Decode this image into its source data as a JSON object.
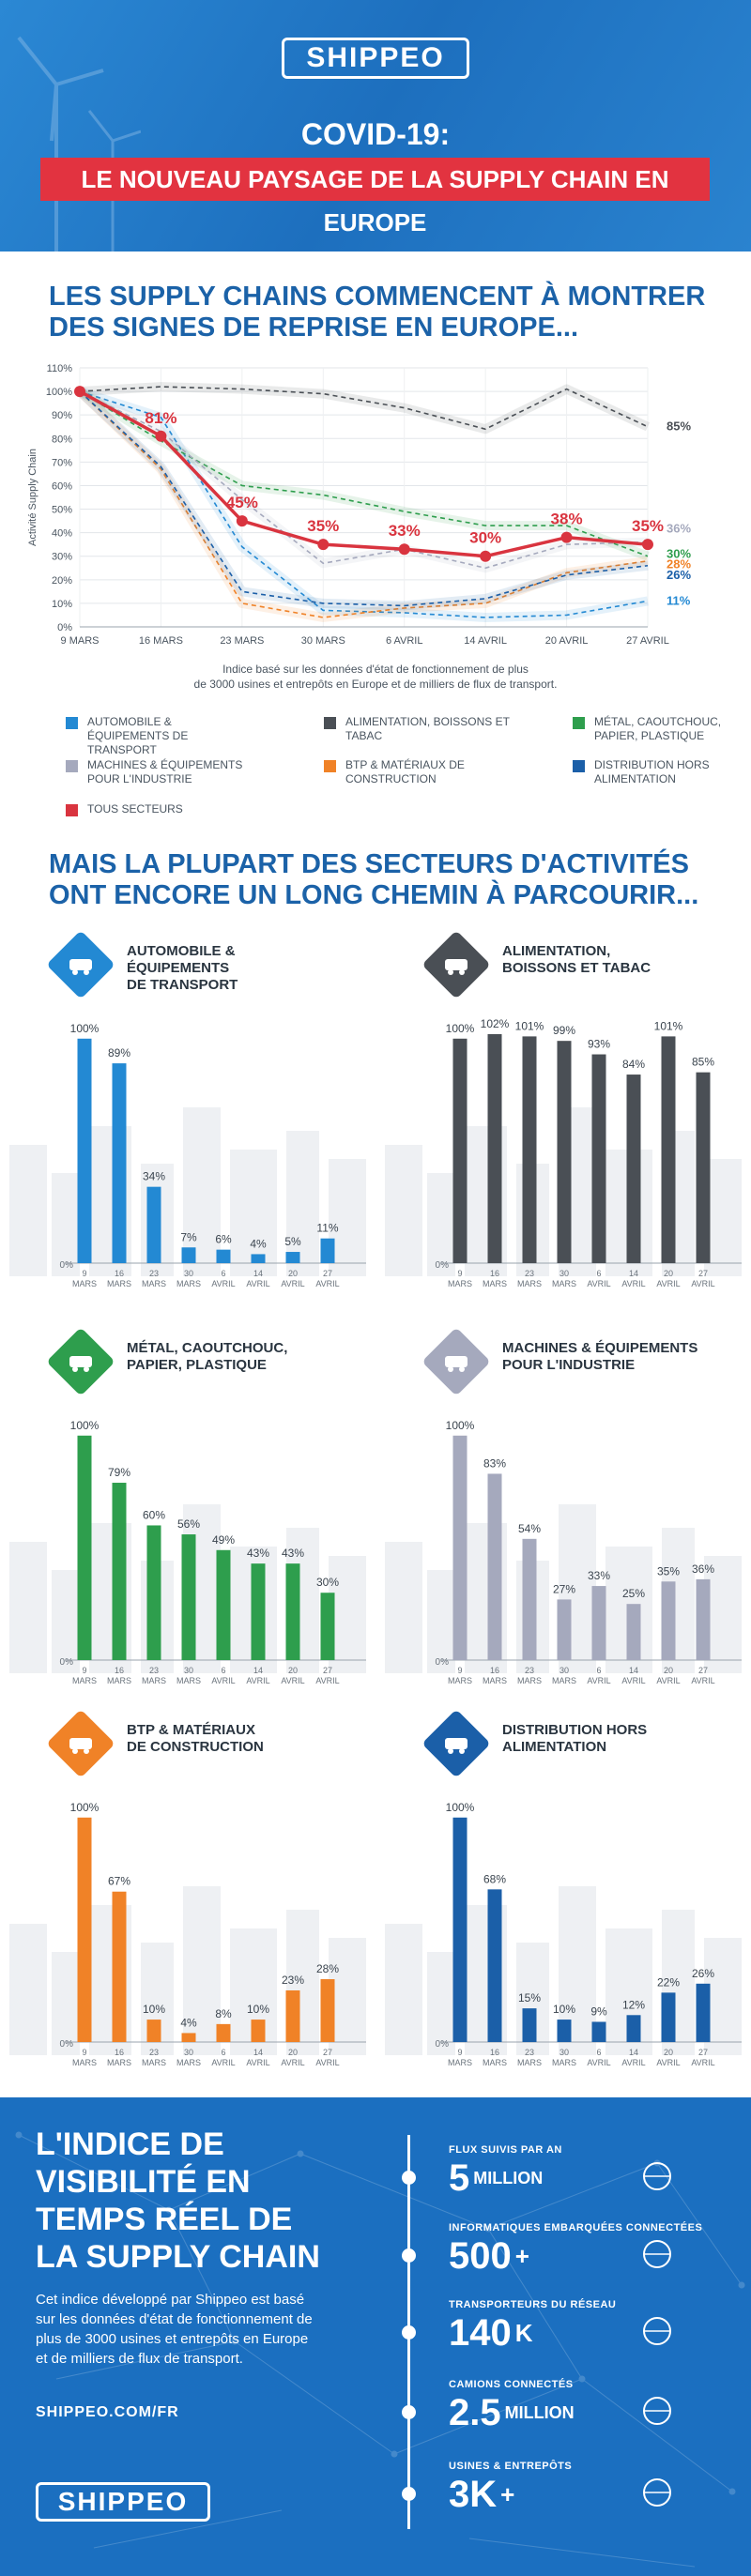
{
  "header": {
    "logo": "SHIPPEO",
    "title": "COVID-19:",
    "subtitle": "LE NOUVEAU PAYSAGE DE LA SUPPLY CHAIN EN EUROPE"
  },
  "section1": {
    "heading_line1": "LES SUPPLY CHAINS COMMENCENT À MONTRER",
    "heading_line2": "DES SIGNES DE REPRISE EN EUROPE...",
    "note_line1": "Indice basé sur les données d'état de fonctionnement de plus",
    "note_line2": "de 3000 usines et entrepôts en Europe et de milliers de flux de transport."
  },
  "legend": [
    {
      "label": "AUTOMOBILE & ÉQUIPEMENTS DE TRANSPORT",
      "color": "#2389d3"
    },
    {
      "label": "ALIMENTATION, BOISSONS ET TABAC",
      "color": "#4a4f55"
    },
    {
      "label": "MÉTAL, CAOUTCHOUC, PAPIER, PLASTIQUE",
      "color": "#2e9e4d"
    },
    {
      "label": "MACHINES & ÉQUIPEMENTS POUR L'INDUSTRIE",
      "color": "#a5a9bd"
    },
    {
      "label": "BTP & MATÉRIAUX DE CONSTRUCTION",
      "color": "#f08227"
    },
    {
      "label": "DISTRIBUTION HORS ALIMENTATION",
      "color": "#1b5fa8"
    },
    {
      "label": "TOUS SECTEURS",
      "color": "#d9343f"
    }
  ],
  "chart_data": [
    {
      "type": "line",
      "ylabel": "Activité Supply Chain",
      "x": [
        "9 MARS",
        "16 MARS",
        "23 MARS",
        "30 MARS",
        "6 AVRIL",
        "14 AVRIL",
        "20 AVRIL",
        "27 AVRIL"
      ],
      "yticks": [
        "0%",
        "10%",
        "20%",
        "30%",
        "40%",
        "50%",
        "60%",
        "70%",
        "80%",
        "90%",
        "100%",
        "110%"
      ],
      "ylim": [
        0,
        110
      ],
      "series": [
        {
          "name": "AUTOMOBILE & ÉQUIPEMENTS DE TRANSPORT",
          "color": "#2389d3",
          "dashed": true,
          "values": [
            100,
            89,
            34,
            7,
            6,
            4,
            5,
            11
          ],
          "end_label": "11%"
        },
        {
          "name": "ALIMENTATION, BOISSONS ET TABAC",
          "color": "#4a4f55",
          "dashed": true,
          "values": [
            100,
            102,
            101,
            99,
            93,
            84,
            101,
            85
          ],
          "end_label": "85%"
        },
        {
          "name": "MÉTAL, CAOUTCHOUC, PAPIER, PLASTIQUE",
          "color": "#2e9e4d",
          "dashed": true,
          "values": [
            100,
            79,
            60,
            56,
            49,
            43,
            43,
            30
          ],
          "end_label": "30%"
        },
        {
          "name": "MACHINES & ÉQUIPEMENTS POUR L'INDUSTRIE",
          "color": "#a5a9bd",
          "dashed": true,
          "values": [
            100,
            83,
            54,
            27,
            33,
            25,
            35,
            36
          ],
          "end_label": "36%"
        },
        {
          "name": "BTP & MATÉRIAUX DE CONSTRUCTION",
          "color": "#f08227",
          "dashed": true,
          "values": [
            100,
            67,
            10,
            4,
            8,
            10,
            23,
            28
          ],
          "end_label": "28%"
        },
        {
          "name": "DISTRIBUTION HORS ALIMENTATION",
          "color": "#1b5fa8",
          "dashed": true,
          "values": [
            100,
            68,
            15,
            10,
            9,
            12,
            22,
            26
          ],
          "end_label": "26%"
        },
        {
          "name": "TOUS SECTEURS",
          "color": "#d9343f",
          "dashed": false,
          "values": [
            100,
            81,
            45,
            35,
            33,
            30,
            38,
            35
          ],
          "labels": [
            "",
            "81%",
            "45%",
            "35%",
            "33%",
            "30%",
            "38%",
            "35%"
          ]
        }
      ]
    },
    {
      "type": "bar",
      "title": "AUTOMOBILE & ÉQUIPEMENTS DE TRANSPORT",
      "color": "#2389d3",
      "values": [
        100,
        89,
        34,
        7,
        6,
        4,
        5,
        11
      ],
      "labels": [
        "100%",
        "89%",
        "34%",
        "7%",
        "6%",
        "4%",
        "5%",
        "11%"
      ]
    },
    {
      "type": "bar",
      "title": "ALIMENTATION, BOISSONS ET TABAC",
      "color": "#4a4f55",
      "values": [
        100,
        102,
        101,
        99,
        93,
        84,
        101,
        85
      ],
      "labels": [
        "100%",
        "102%",
        "101%",
        "99%",
        "93%",
        "84%",
        "101%",
        "85%"
      ]
    },
    {
      "type": "bar",
      "title": "MÉTAL, CAOUTCHOUC, PAPIER, PLASTIQUE",
      "color": "#2e9e4d",
      "values": [
        100,
        79,
        60,
        56,
        49,
        43,
        43,
        30
      ],
      "labels": [
        "100%",
        "79%",
        "60%",
        "56%",
        "49%",
        "43%",
        "43%",
        "30%"
      ]
    },
    {
      "type": "bar",
      "title": "MACHINES & ÉQUIPEMENTS POUR L'INDUSTRIE",
      "color": "#a5a9bd",
      "values": [
        100,
        83,
        54,
        27,
        33,
        25,
        35,
        36
      ],
      "labels": [
        "100%",
        "83%",
        "54%",
        "27%",
        "33%",
        "25%",
        "35%",
        "36%"
      ]
    },
    {
      "type": "bar",
      "title": "BTP & MATÉRIAUX DE CONSTRUCTION",
      "color": "#f08227",
      "values": [
        100,
        67,
        10,
        4,
        8,
        10,
        23,
        28
      ],
      "labels": [
        "100%",
        "67%",
        "10%",
        "4%",
        "8%",
        "10%",
        "23%",
        "28%"
      ]
    },
    {
      "type": "bar",
      "title": "DISTRIBUTION HORS ALIMENTATION",
      "color": "#1b5fa8",
      "values": [
        100,
        68,
        15,
        10,
        9,
        12,
        22,
        26
      ],
      "labels": [
        "100%",
        "68%",
        "15%",
        "10%",
        "9%",
        "12%",
        "22%",
        "26%"
      ]
    }
  ],
  "bar_axis": {
    "zero": "0%",
    "day": [
      "9",
      "16",
      "23",
      "30",
      "6",
      "14",
      "20",
      "27"
    ],
    "month": [
      "MARS",
      "MARS",
      "MARS",
      "MARS",
      "AVRIL",
      "AVRIL",
      "AVRIL",
      "AVRIL"
    ]
  },
  "section2": {
    "heading_line1": "MAIS LA PLUPART DES SECTEURS D'ACTIVITÉS",
    "heading_line2": "ONT ENCORE UN LONG CHEMIN À PARCOURIR...",
    "panels": [
      {
        "title_line1": "AUTOMOBILE &",
        "title_line2": "ÉQUIPEMENTS",
        "title_line3": "DE TRANSPORT",
        "icon": "car-icon"
      },
      {
        "title_line1": "ALIMENTATION,",
        "title_line2": "BOISSONS ET TABAC",
        "title_line3": "",
        "icon": "basket-icon"
      },
      {
        "title_line1": "MÉTAL, CAOUTCHOUC,",
        "title_line2": "PAPIER, PLASTIQUE",
        "title_line3": "",
        "icon": "factory-tools-icon"
      },
      {
        "title_line1": "MACHINES & ÉQUIPEMENTS",
        "title_line2": "POUR L'INDUSTRIE",
        "title_line3": "",
        "icon": "drill-icon"
      },
      {
        "title_line1": "BTP & MATÉRIAUX",
        "title_line2": "DE CONSTRUCTION",
        "title_line3": "",
        "icon": "crane-icon"
      },
      {
        "title_line1": "DISTRIBUTION HORS",
        "title_line2": "ALIMENTATION",
        "title_line3": "",
        "icon": "shoe-icon"
      }
    ]
  },
  "footer": {
    "title_line1": "L'INDICE DE",
    "title_line2": "VISIBILITÉ EN",
    "title_line3": "TEMPS RÉEL DE",
    "title_line4": "LA SUPPLY CHAIN",
    "paragraph": "Cet indice développé par Shippeo est basé sur les données d'état de fonctionnement de plus de 3000 usines et entrepôts en Europe et de milliers de flux de transport.",
    "link": "SHIPPEO.COM/FR",
    "logo": "SHIPPEO",
    "stats": [
      {
        "label": "FLUX SUIVIS PAR AN",
        "value": "5",
        "suffix": "MILLION",
        "icon": "globe-icon"
      },
      {
        "label": "INFORMATIQUES EMBARQUÉES CONNECTÉES",
        "value": "500",
        "suffix": "+",
        "icon": "location-pin-icon"
      },
      {
        "label": "TRANSPORTEURS DU RÉSEAU",
        "value": "140",
        "suffix": "K",
        "icon": "truck-icon"
      },
      {
        "label": "CAMIONS CONNECTÉS",
        "value": "2.5",
        "suffix": "MILLION",
        "icon": "connected-truck-icon"
      },
      {
        "label": "USINES & ENTREPÔTS",
        "value": "3K",
        "suffix": "+",
        "icon": "warehouse-icon"
      }
    ]
  }
}
